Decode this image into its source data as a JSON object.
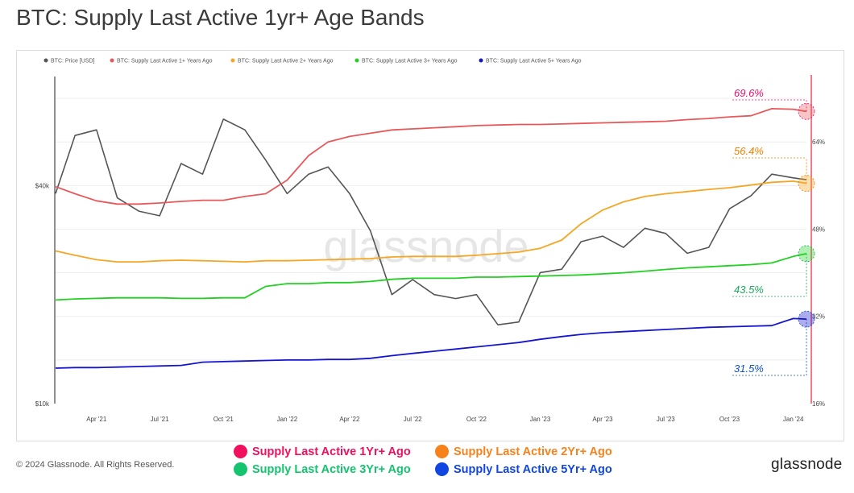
{
  "title": "BTC: Supply Last Active 1yr+ Age Bands",
  "copyright": "© 2024 Glassnode. All Rights Reserved.",
  "brand": "glassnode",
  "watermark": "glassnode",
  "colors": {
    "price": "#555555",
    "s1": "#e8585a",
    "s2": "#f5a623",
    "s3": "#22d022",
    "s5": "#1515cf",
    "redLine": "#e8334a",
    "ann1": "#e60d6e",
    "ann2": "#f07f00",
    "ann3": "#1aa85a",
    "ann5": "#1050c8"
  },
  "bottom_legend": [
    {
      "label": "Supply Last Active 1Yr+ Ago",
      "color": "#f0105e"
    },
    {
      "label": "Supply Last Active 2Yr+ Ago",
      "color": "#f7821b"
    },
    {
      "label": "Supply Last Active 3Yr+ Ago",
      "color": "#14c46e"
    },
    {
      "label": "Supply Last Active 5Yr+ Ago",
      "color": "#1147e0"
    }
  ],
  "chart_data": {
    "type": "line",
    "title": "BTC: Supply Last Active 1yr+ Age Bands",
    "x_ticks": [
      "Apr '21",
      "Jul '21",
      "Oct '21",
      "Jan '22",
      "Apr '22",
      "Jul '22",
      "Oct '22",
      "Jan '23",
      "Apr '23",
      "Jul '23",
      "Oct '23",
      "Jan '24"
    ],
    "x": [
      "2021-02",
      "2021-03",
      "2021-04",
      "2021-05",
      "2021-06",
      "2021-07",
      "2021-08",
      "2021-09",
      "2021-10",
      "2021-11",
      "2021-12",
      "2022-01",
      "2022-02",
      "2022-03",
      "2022-04",
      "2022-05",
      "2022-06",
      "2022-07",
      "2022-08",
      "2022-09",
      "2022-10",
      "2022-11",
      "2022-12",
      "2023-01",
      "2023-02",
      "2023-03",
      "2023-04",
      "2023-05",
      "2023-06",
      "2023-07",
      "2023-08",
      "2023-09",
      "2023-10",
      "2023-11",
      "2023-12",
      "2024-01",
      "2024-01-20"
    ],
    "y_left": {
      "scale": "log",
      "ticks": [
        "$10k",
        "$40k"
      ],
      "tick_values": [
        10000,
        40000
      ]
    },
    "y_right": {
      "scale": "linear",
      "unit": "%",
      "ticks": [
        "16%",
        "32%",
        "48%",
        "64%"
      ],
      "tick_values": [
        16,
        32,
        48,
        64
      ]
    },
    "legend": [
      "BTC: Price [USD]",
      "BTC: Supply Last Active 1+ Years Ago",
      "BTC: Supply Last Active 2+ Years Ago",
      "BTC: Supply Last Active 3+ Years Ago",
      "BTC: Supply Last Active 5+ Years Ago"
    ],
    "series": [
      {
        "name": "BTC: Price [USD]",
        "axis": "left",
        "values": [
          38000,
          55000,
          57000,
          37000,
          34000,
          33000,
          46000,
          43000,
          61000,
          57000,
          47000,
          38000,
          43000,
          45000,
          38000,
          30000,
          20000,
          22000,
          20000,
          19500,
          20000,
          16500,
          16800,
          23000,
          23500,
          28000,
          29000,
          27000,
          30500,
          29500,
          26000,
          27000,
          34500,
          37500,
          43000,
          42000,
          41500
        ]
      },
      {
        "name": "BTC: Supply Last Active 1+ Years Ago",
        "axis": "right",
        "values": [
          55.8,
          54.5,
          53.2,
          52.6,
          52.6,
          52.8,
          53.1,
          53.3,
          53.3,
          54.0,
          54.5,
          57.0,
          61.5,
          64.0,
          65.0,
          65.6,
          66.2,
          66.4,
          66.6,
          66.8,
          67.0,
          67.1,
          67.2,
          67.2,
          67.3,
          67.4,
          67.5,
          67.6,
          67.7,
          67.8,
          68.1,
          68.3,
          68.6,
          68.8,
          70.1,
          70.0,
          69.6
        ]
      },
      {
        "name": "BTC: Supply Last Active 2+ Years Ago",
        "axis": "right",
        "values": [
          44.0,
          43.2,
          42.4,
          42.0,
          42.0,
          42.2,
          42.3,
          42.2,
          42.1,
          42.0,
          42.2,
          42.2,
          42.3,
          42.4,
          42.5,
          42.6,
          42.9,
          43.0,
          43.0,
          43.0,
          43.2,
          43.5,
          43.8,
          44.5,
          46.0,
          49.0,
          51.5,
          53.0,
          54.0,
          54.5,
          54.9,
          55.3,
          55.6,
          56.1,
          56.6,
          56.8,
          56.4
        ]
      },
      {
        "name": "BTC: Supply Last Active 3+ Years Ago",
        "axis": "right",
        "values": [
          35.0,
          35.2,
          35.3,
          35.4,
          35.4,
          35.4,
          35.3,
          35.3,
          35.4,
          35.4,
          37.5,
          38.0,
          38.0,
          38.2,
          38.2,
          38.4,
          38.8,
          39.0,
          39.0,
          39.0,
          39.2,
          39.2,
          39.3,
          39.4,
          39.5,
          39.6,
          39.8,
          40.0,
          40.3,
          40.6,
          40.9,
          41.1,
          41.3,
          41.5,
          41.8,
          43.0,
          43.5
        ]
      },
      {
        "name": "BTC: Supply Last Active 5+ Years Ago",
        "axis": "right",
        "values": [
          22.5,
          22.6,
          22.6,
          22.7,
          22.8,
          22.9,
          23.0,
          23.6,
          23.7,
          23.8,
          23.9,
          24.0,
          24.0,
          24.1,
          24.1,
          24.3,
          24.8,
          25.2,
          25.6,
          26.0,
          26.4,
          26.8,
          27.2,
          27.8,
          28.3,
          28.7,
          29.0,
          29.2,
          29.4,
          29.6,
          29.8,
          30.0,
          30.1,
          30.2,
          30.3,
          31.6,
          31.5
        ]
      }
    ],
    "annotations": [
      {
        "label": "69.6%",
        "series": "BTC: Supply Last Active 1+ Years Ago",
        "value": 69.6
      },
      {
        "label": "56.4%",
        "series": "BTC: Supply Last Active 2+ Years Ago",
        "value": 56.4
      },
      {
        "label": "43.5%",
        "series": "BTC: Supply Last Active 3+ Years Ago",
        "value": 43.5
      },
      {
        "label": "31.5%",
        "series": "BTC: Supply Last Active 5+ Years Ago",
        "value": 31.5
      }
    ]
  }
}
